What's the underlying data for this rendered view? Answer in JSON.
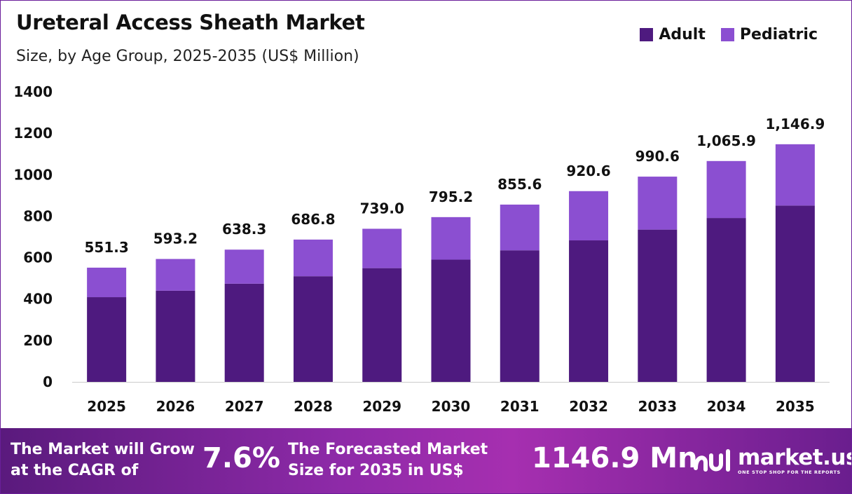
{
  "header": {
    "title": "Ureteral Access Sheath Market",
    "subtitle": "Size, by Age Group, 2025-2035 (US$ Million)"
  },
  "legend": [
    {
      "label": "Adult",
      "color": "#4e1a7f"
    },
    {
      "label": "Pediatric",
      "color": "#8b4fd1"
    }
  ],
  "chart_data": {
    "type": "bar",
    "stacked": true,
    "categories": [
      "2025",
      "2026",
      "2027",
      "2028",
      "2029",
      "2030",
      "2031",
      "2032",
      "2033",
      "2034",
      "2035"
    ],
    "series": [
      {
        "name": "Adult",
        "color": "#4e1a7f",
        "values": [
          409,
          440,
          474,
          510,
          549,
          590,
          635,
          683,
          735,
          791,
          851
        ]
      },
      {
        "name": "Pediatric",
        "color": "#8b4fd1",
        "values": [
          142.3,
          153.2,
          164.3,
          176.8,
          190.0,
          205.2,
          220.6,
          237.6,
          255.6,
          274.9,
          295.9
        ]
      }
    ],
    "totals_labels": [
      "551.3",
      "593.2",
      "638.3",
      "686.8",
      "739.0",
      "795.2",
      "855.6",
      "920.6",
      "990.6",
      "1,065.9",
      "1,146.9"
    ],
    "totals": [
      551.3,
      593.2,
      638.3,
      686.8,
      739.0,
      795.2,
      855.6,
      920.6,
      990.6,
      1065.9,
      1146.9
    ],
    "yticks": [
      "0",
      "200",
      "400",
      "600",
      "800",
      "1000",
      "1200",
      "1400"
    ],
    "ylim": [
      0,
      1400
    ],
    "title": "Ureteral Access Sheath Market",
    "xlabel": "",
    "ylabel": "",
    "grid": false,
    "legend_position": "top-right"
  },
  "footer": {
    "cagr_text": "The Market will Grow at the CAGR of",
    "cagr_text_line1": "The Market will Grow",
    "cagr_text_line2": "at the CAGR of",
    "cagr_value": "7.6%",
    "forecast_text_line1": "The Forecasted Market",
    "forecast_text_line2": "Size for 2035 in US$",
    "forecast_value": "1146.9 Mn",
    "logo_name": "market.us",
    "logo_tagline": "ONE STOP SHOP FOR THE REPORTS"
  }
}
